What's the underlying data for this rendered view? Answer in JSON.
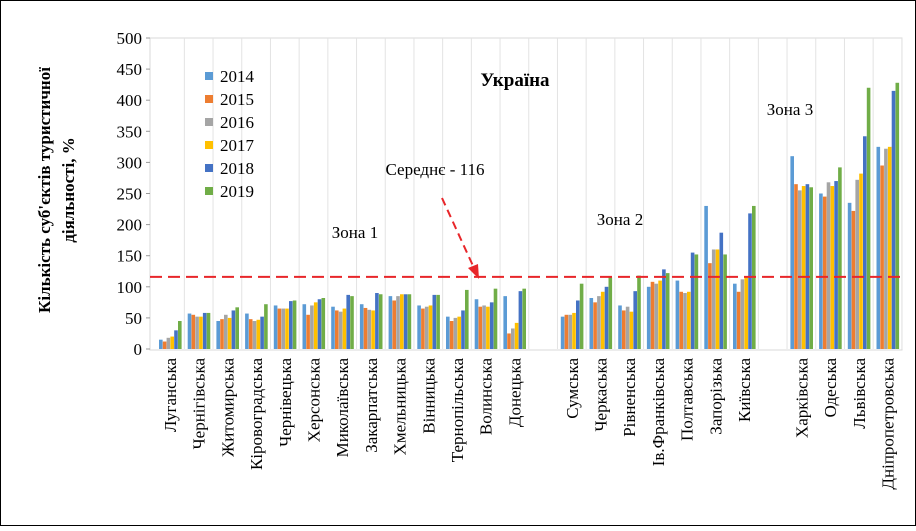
{
  "chart_data": {
    "type": "bar",
    "title": "Україна",
    "ylabel": [
      "Кількість суб'єктів туристичної",
      "діяльності, %"
    ],
    "annotations": [
      "Середнє - 116",
      "Зона 1",
      "Зона 2",
      "Зона 3"
    ],
    "mean_line": 116,
    "categories": [
      "Луганська",
      "Чернігівська",
      "Житомирська",
      "Кіровоградська",
      "Чернівецька",
      "Херсонська",
      "Миколаївська",
      "Закарпатська",
      "Хмельницька",
      "Вінницька",
      "Тернопільська",
      "Волинська",
      "Донецька",
      null,
      "Сумська",
      "Черкаська",
      "Рівненська",
      "Ів.Франківська",
      "Полтавська",
      "Запорізька",
      "Київська",
      null,
      "Харківська",
      "Одеська",
      "Львівська",
      "Дніпропетровська"
    ],
    "series": [
      {
        "name": "2014",
        "color": "#5b9bd5",
        "values": [
          15,
          57,
          45,
          57,
          70,
          72,
          68,
          72,
          85,
          70,
          52,
          80,
          85,
          null,
          52,
          82,
          70,
          100,
          110,
          230,
          105,
          null,
          310,
          250,
          235,
          325
        ]
      },
      {
        "name": "2015",
        "color": "#ed7d31",
        "values": [
          12,
          55,
          48,
          48,
          65,
          55,
          62,
          66,
          78,
          65,
          45,
          68,
          25,
          null,
          55,
          75,
          62,
          108,
          92,
          138,
          92,
          null,
          265,
          245,
          222,
          295
        ]
      },
      {
        "name": "2016",
        "color": "#a5a5a5",
        "values": [
          18,
          52,
          55,
          45,
          65,
          70,
          60,
          63,
          85,
          68,
          50,
          70,
          33,
          null,
          55,
          85,
          68,
          105,
          90,
          160,
          112,
          null,
          255,
          268,
          272,
          322
        ]
      },
      {
        "name": "2017",
        "color": "#ffc000",
        "values": [
          20,
          52,
          50,
          47,
          65,
          75,
          65,
          62,
          88,
          70,
          52,
          68,
          42,
          null,
          58,
          92,
          60,
          110,
          92,
          160,
          115,
          null,
          262,
          262,
          282,
          325
        ]
      },
      {
        "name": "2018",
        "color": "#4472c4",
        "values": [
          30,
          58,
          62,
          52,
          77,
          80,
          87,
          90,
          88,
          87,
          62,
          75,
          93,
          null,
          78,
          100,
          93,
          128,
          155,
          187,
          218,
          null,
          265,
          270,
          342,
          415
        ]
      },
      {
        "name": "2019",
        "color": "#70ad47",
        "values": [
          45,
          58,
          67,
          72,
          78,
          82,
          85,
          88,
          88,
          87,
          95,
          97,
          97,
          null,
          105,
          115,
          118,
          122,
          152,
          152,
          230,
          null,
          260,
          292,
          420,
          428
        ]
      }
    ],
    "ylim": [
      0,
      500
    ],
    "yticks": [
      0,
      50,
      100,
      150,
      200,
      250,
      300,
      350,
      400,
      450,
      500
    ],
    "legend": "upper left"
  }
}
